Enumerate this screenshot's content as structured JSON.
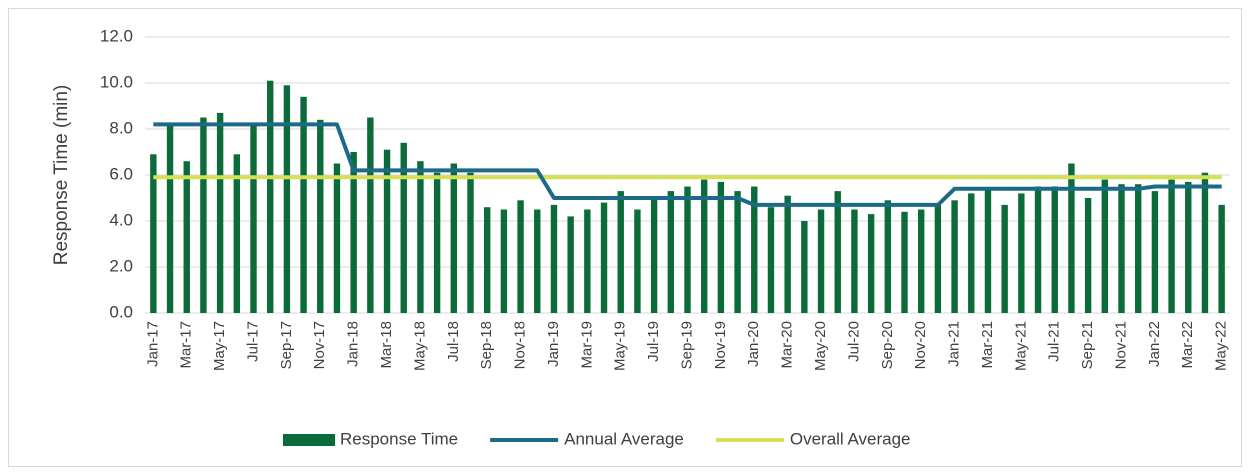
{
  "chart_data": {
    "type": "bar",
    "y_label": "Response Time (min)",
    "categories": [
      "Jan-17",
      null,
      "Mar-17",
      null,
      "May-17",
      null,
      "Jul-17",
      null,
      "Sep-17",
      null,
      "Nov-17",
      null,
      "Jan-18",
      null,
      "Mar-18",
      null,
      "May-18",
      null,
      "Jul-18",
      null,
      "Sep-18",
      null,
      "Nov-18",
      null,
      "Jan-19",
      null,
      "Mar-19",
      null,
      "May-19",
      null,
      "Jul-19",
      null,
      "Sep-19",
      null,
      "Nov-19",
      null,
      "Jan-20",
      null,
      "Mar-20",
      null,
      "May-20",
      null,
      "Jul-20",
      null,
      "Sep-20",
      null,
      "Nov-20",
      null,
      "Jan-21",
      null,
      "Mar-21",
      null,
      "May-21",
      null,
      "Jul-21",
      null,
      "Sep-21",
      null,
      "Nov-21",
      null,
      "Jan-22",
      null,
      "Mar-22",
      null,
      "May-22"
    ],
    "series": [
      {
        "name": "Response Time",
        "type": "bar",
        "color": "#0b6b3a",
        "values": [
          6.9,
          8.2,
          6.6,
          8.5,
          8.7,
          6.9,
          8.2,
          10.1,
          9.9,
          9.4,
          8.4,
          6.5,
          7.0,
          8.5,
          7.1,
          7.4,
          6.6,
          6.1,
          6.5,
          6.1,
          4.6,
          4.5,
          4.9,
          4.5,
          4.7,
          4.2,
          4.5,
          4.8,
          5.3,
          4.5,
          5.0,
          5.3,
          5.5,
          5.8,
          5.7,
          5.3,
          5.5,
          4.6,
          5.1,
          4.0,
          4.5,
          5.3,
          4.5,
          4.3,
          4.9,
          4.4,
          4.5,
          4.7,
          4.9,
          5.2,
          5.4,
          4.7,
          5.2,
          5.5,
          5.5,
          6.5,
          5.0,
          5.8,
          5.6,
          5.6,
          5.3,
          5.8,
          5.7,
          6.1,
          4.7
        ]
      },
      {
        "name": "Annual Average",
        "type": "line",
        "color": "#1b6a86",
        "values": [
          8.2,
          8.2,
          8.2,
          8.2,
          8.2,
          8.2,
          8.2,
          8.2,
          8.2,
          8.2,
          8.2,
          8.2,
          6.2,
          6.2,
          6.2,
          6.2,
          6.2,
          6.2,
          6.2,
          6.2,
          6.2,
          6.2,
          6.2,
          6.2,
          5.0,
          5.0,
          5.0,
          5.0,
          5.0,
          5.0,
          5.0,
          5.0,
          5.0,
          5.0,
          5.0,
          5.0,
          4.7,
          4.7,
          4.7,
          4.7,
          4.7,
          4.7,
          4.7,
          4.7,
          4.7,
          4.7,
          4.7,
          4.7,
          5.4,
          5.4,
          5.4,
          5.4,
          5.4,
          5.4,
          5.4,
          5.4,
          5.4,
          5.4,
          5.4,
          5.4,
          5.5,
          5.5,
          5.5,
          5.5,
          5.5
        ]
      },
      {
        "name": "Overall Average",
        "type": "line",
        "color": "#d4e157",
        "values": [
          5.9,
          5.9,
          5.9,
          5.9,
          5.9,
          5.9,
          5.9,
          5.9,
          5.9,
          5.9,
          5.9,
          5.9,
          5.9,
          5.9,
          5.9,
          5.9,
          5.9,
          5.9,
          5.9,
          5.9,
          5.9,
          5.9,
          5.9,
          5.9,
          5.9,
          5.9,
          5.9,
          5.9,
          5.9,
          5.9,
          5.9,
          5.9,
          5.9,
          5.9,
          5.9,
          5.9,
          5.9,
          5.9,
          5.9,
          5.9,
          5.9,
          5.9,
          5.9,
          5.9,
          5.9,
          5.9,
          5.9,
          5.9,
          5.9,
          5.9,
          5.9,
          5.9,
          5.9,
          5.9,
          5.9,
          5.9,
          5.9,
          5.9,
          5.9,
          5.9,
          5.9,
          5.9,
          5.9,
          5.9,
          5.9
        ]
      }
    ],
    "ylim": [
      0,
      12
    ],
    "yticks": [
      {
        "value": 0,
        "label": "0.0"
      },
      {
        "value": 2,
        "label": "2.0"
      },
      {
        "value": 4,
        "label": "4.0"
      },
      {
        "value": 6,
        "label": "6.0"
      },
      {
        "value": 8,
        "label": "8.0"
      },
      {
        "value": 10,
        "label": "10.0"
      },
      {
        "value": 12,
        "label": "12.0"
      }
    ],
    "grid": true,
    "legend": "bottom"
  }
}
